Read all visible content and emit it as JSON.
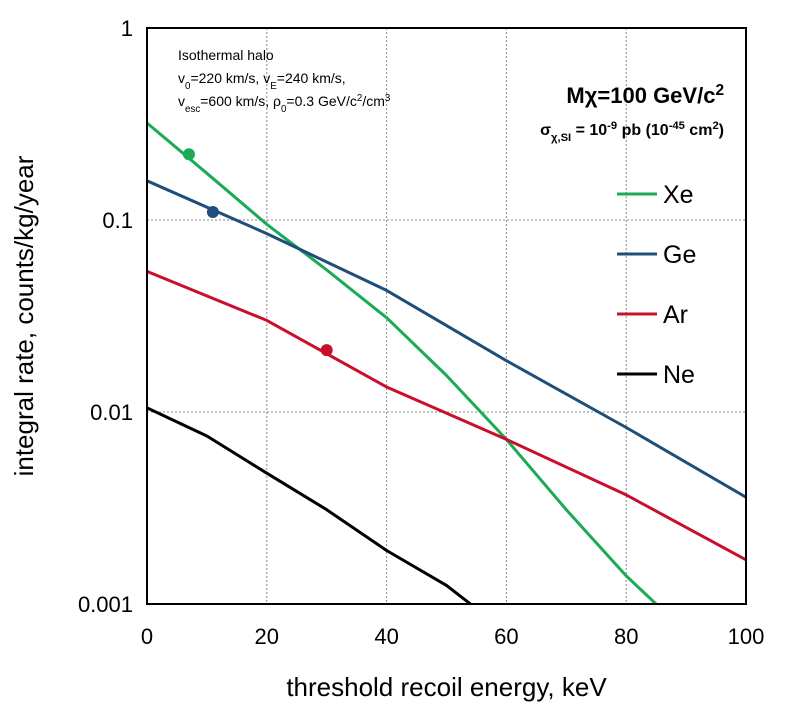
{
  "chart_data": {
    "type": "line",
    "xlabel": "threshold recoil energy, keV",
    "ylabel": "integral rate, counts/kg/year",
    "xlim": [
      0,
      100
    ],
    "ylim": [
      0.001,
      1
    ],
    "y_scale": "log",
    "x_ticks": [
      0,
      20,
      40,
      60,
      80,
      100
    ],
    "x_tick_labels": [
      "0",
      "20",
      "40",
      "60",
      "80",
      "100"
    ],
    "y_ticks": [
      0.001,
      0.01,
      0.1,
      1
    ],
    "y_tick_labels": [
      "0.001",
      "0.01",
      "0.1",
      "1"
    ],
    "grid": "dotted",
    "legend_position": "right",
    "series": [
      {
        "name": "Xe",
        "color": "#1aab56",
        "x": [
          0,
          10,
          20,
          30,
          40,
          50,
          60,
          70,
          80,
          85
        ],
        "y": [
          0.32,
          0.175,
          0.095,
          0.055,
          0.031,
          0.0155,
          0.0072,
          0.0031,
          0.0014,
          0.001
        ],
        "marker": {
          "x": 7,
          "y": 0.22
        }
      },
      {
        "name": "Ge",
        "color": "#1d4f7a",
        "x": [
          0,
          20,
          40,
          60,
          80,
          100
        ],
        "y": [
          0.16,
          0.085,
          0.043,
          0.0185,
          0.0083,
          0.0036
        ],
        "marker": {
          "x": 11,
          "y": 0.11
        }
      },
      {
        "name": "Ar",
        "color": "#c8102e",
        "x": [
          0,
          20,
          40,
          60,
          80,
          100
        ],
        "y": [
          0.054,
          0.03,
          0.0135,
          0.0072,
          0.0037,
          0.0017
        ],
        "marker": {
          "x": 30,
          "y": 0.021
        }
      },
      {
        "name": "Ne",
        "color": "#000000",
        "x": [
          0,
          10,
          20,
          30,
          40,
          50,
          54
        ],
        "y": [
          0.0105,
          0.0075,
          0.0048,
          0.0031,
          0.0019,
          0.00125,
          0.001
        ],
        "marker": null
      }
    ],
    "annotations": {
      "halo_title": "Isothermal halo",
      "halo_line1_parts": [
        {
          "t": "v",
          "s": "normal"
        },
        {
          "t": "0",
          "s": "sub"
        },
        {
          "t": "=220 km/s, v",
          "s": "normal"
        },
        {
          "t": "E",
          "s": "sub"
        },
        {
          "t": "=240 km/s,",
          "s": "normal"
        }
      ],
      "halo_line2_parts": [
        {
          "t": "v",
          "s": "normal"
        },
        {
          "t": "esc",
          "s": "sub"
        },
        {
          "t": "=600 km/s, ρ",
          "s": "normal"
        },
        {
          "t": "0",
          "s": "sub"
        },
        {
          "t": "=0.3 GeV/c",
          "s": "normal"
        },
        {
          "t": "2",
          "s": "sup"
        },
        {
          "t": "/cm",
          "s": "normal"
        },
        {
          "t": "3",
          "s": "sup"
        }
      ],
      "mass_parts": [
        {
          "t": "Mχ=100 GeV/c",
          "s": "normal"
        },
        {
          "t": "2",
          "s": "sup"
        }
      ],
      "sigma_parts": [
        {
          "t": "σ",
          "s": "normal"
        },
        {
          "t": "χ,SI",
          "s": "sub"
        },
        {
          "t": " = 10",
          "s": "normal"
        },
        {
          "t": "-9",
          "s": "sup"
        },
        {
          "t": " pb (10",
          "s": "normal"
        },
        {
          "t": "-45",
          "s": "sup"
        },
        {
          "t": " cm",
          "s": "normal"
        },
        {
          "t": "2",
          "s": "sup"
        },
        {
          "t": ")",
          "s": "normal"
        }
      ]
    }
  }
}
